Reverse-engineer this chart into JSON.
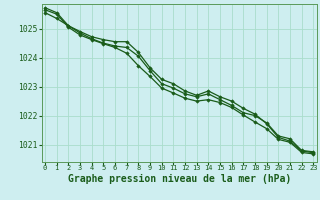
{
  "background_color": "#ceeef0",
  "grid_color": "#aaddcc",
  "line_color": "#1a5c1a",
  "marker_color": "#1a5c1a",
  "xlabel": "Graphe pression niveau de la mer (hPa)",
  "xlabel_fontsize": 7,
  "ylim": [
    1020.4,
    1025.85
  ],
  "yticks": [
    1021,
    1022,
    1023,
    1024,
    1025
  ],
  "xlim": [
    -0.3,
    23.3
  ],
  "xticks": [
    0,
    1,
    2,
    3,
    4,
    5,
    6,
    7,
    8,
    9,
    10,
    11,
    12,
    13,
    14,
    15,
    16,
    17,
    18,
    19,
    20,
    21,
    22,
    23
  ],
  "series": [
    [
      1025.55,
      1025.35,
      1025.1,
      1024.85,
      1024.65,
      1024.5,
      1024.4,
      1024.35,
      1024.05,
      1023.55,
      1023.1,
      1022.95,
      1022.75,
      1022.65,
      1022.75,
      1022.55,
      1022.35,
      1022.1,
      1022.0,
      1021.75,
      1021.3,
      1021.2,
      1020.8,
      1020.75
    ],
    [
      1025.72,
      1025.55,
      1025.1,
      1024.9,
      1024.72,
      1024.62,
      1024.55,
      1024.55,
      1024.18,
      1023.65,
      1023.25,
      1023.1,
      1022.85,
      1022.7,
      1022.85,
      1022.65,
      1022.5,
      1022.25,
      1022.05,
      1021.72,
      1021.25,
      1021.12,
      1020.78,
      1020.72
    ],
    [
      1025.65,
      1025.5,
      1025.05,
      1024.78,
      1024.62,
      1024.48,
      1024.35,
      1024.15,
      1023.72,
      1023.35,
      1022.95,
      1022.78,
      1022.6,
      1022.5,
      1022.55,
      1022.45,
      1022.28,
      1022.02,
      1021.78,
      1021.55,
      1021.18,
      1021.08,
      1020.73,
      1020.68
    ]
  ]
}
